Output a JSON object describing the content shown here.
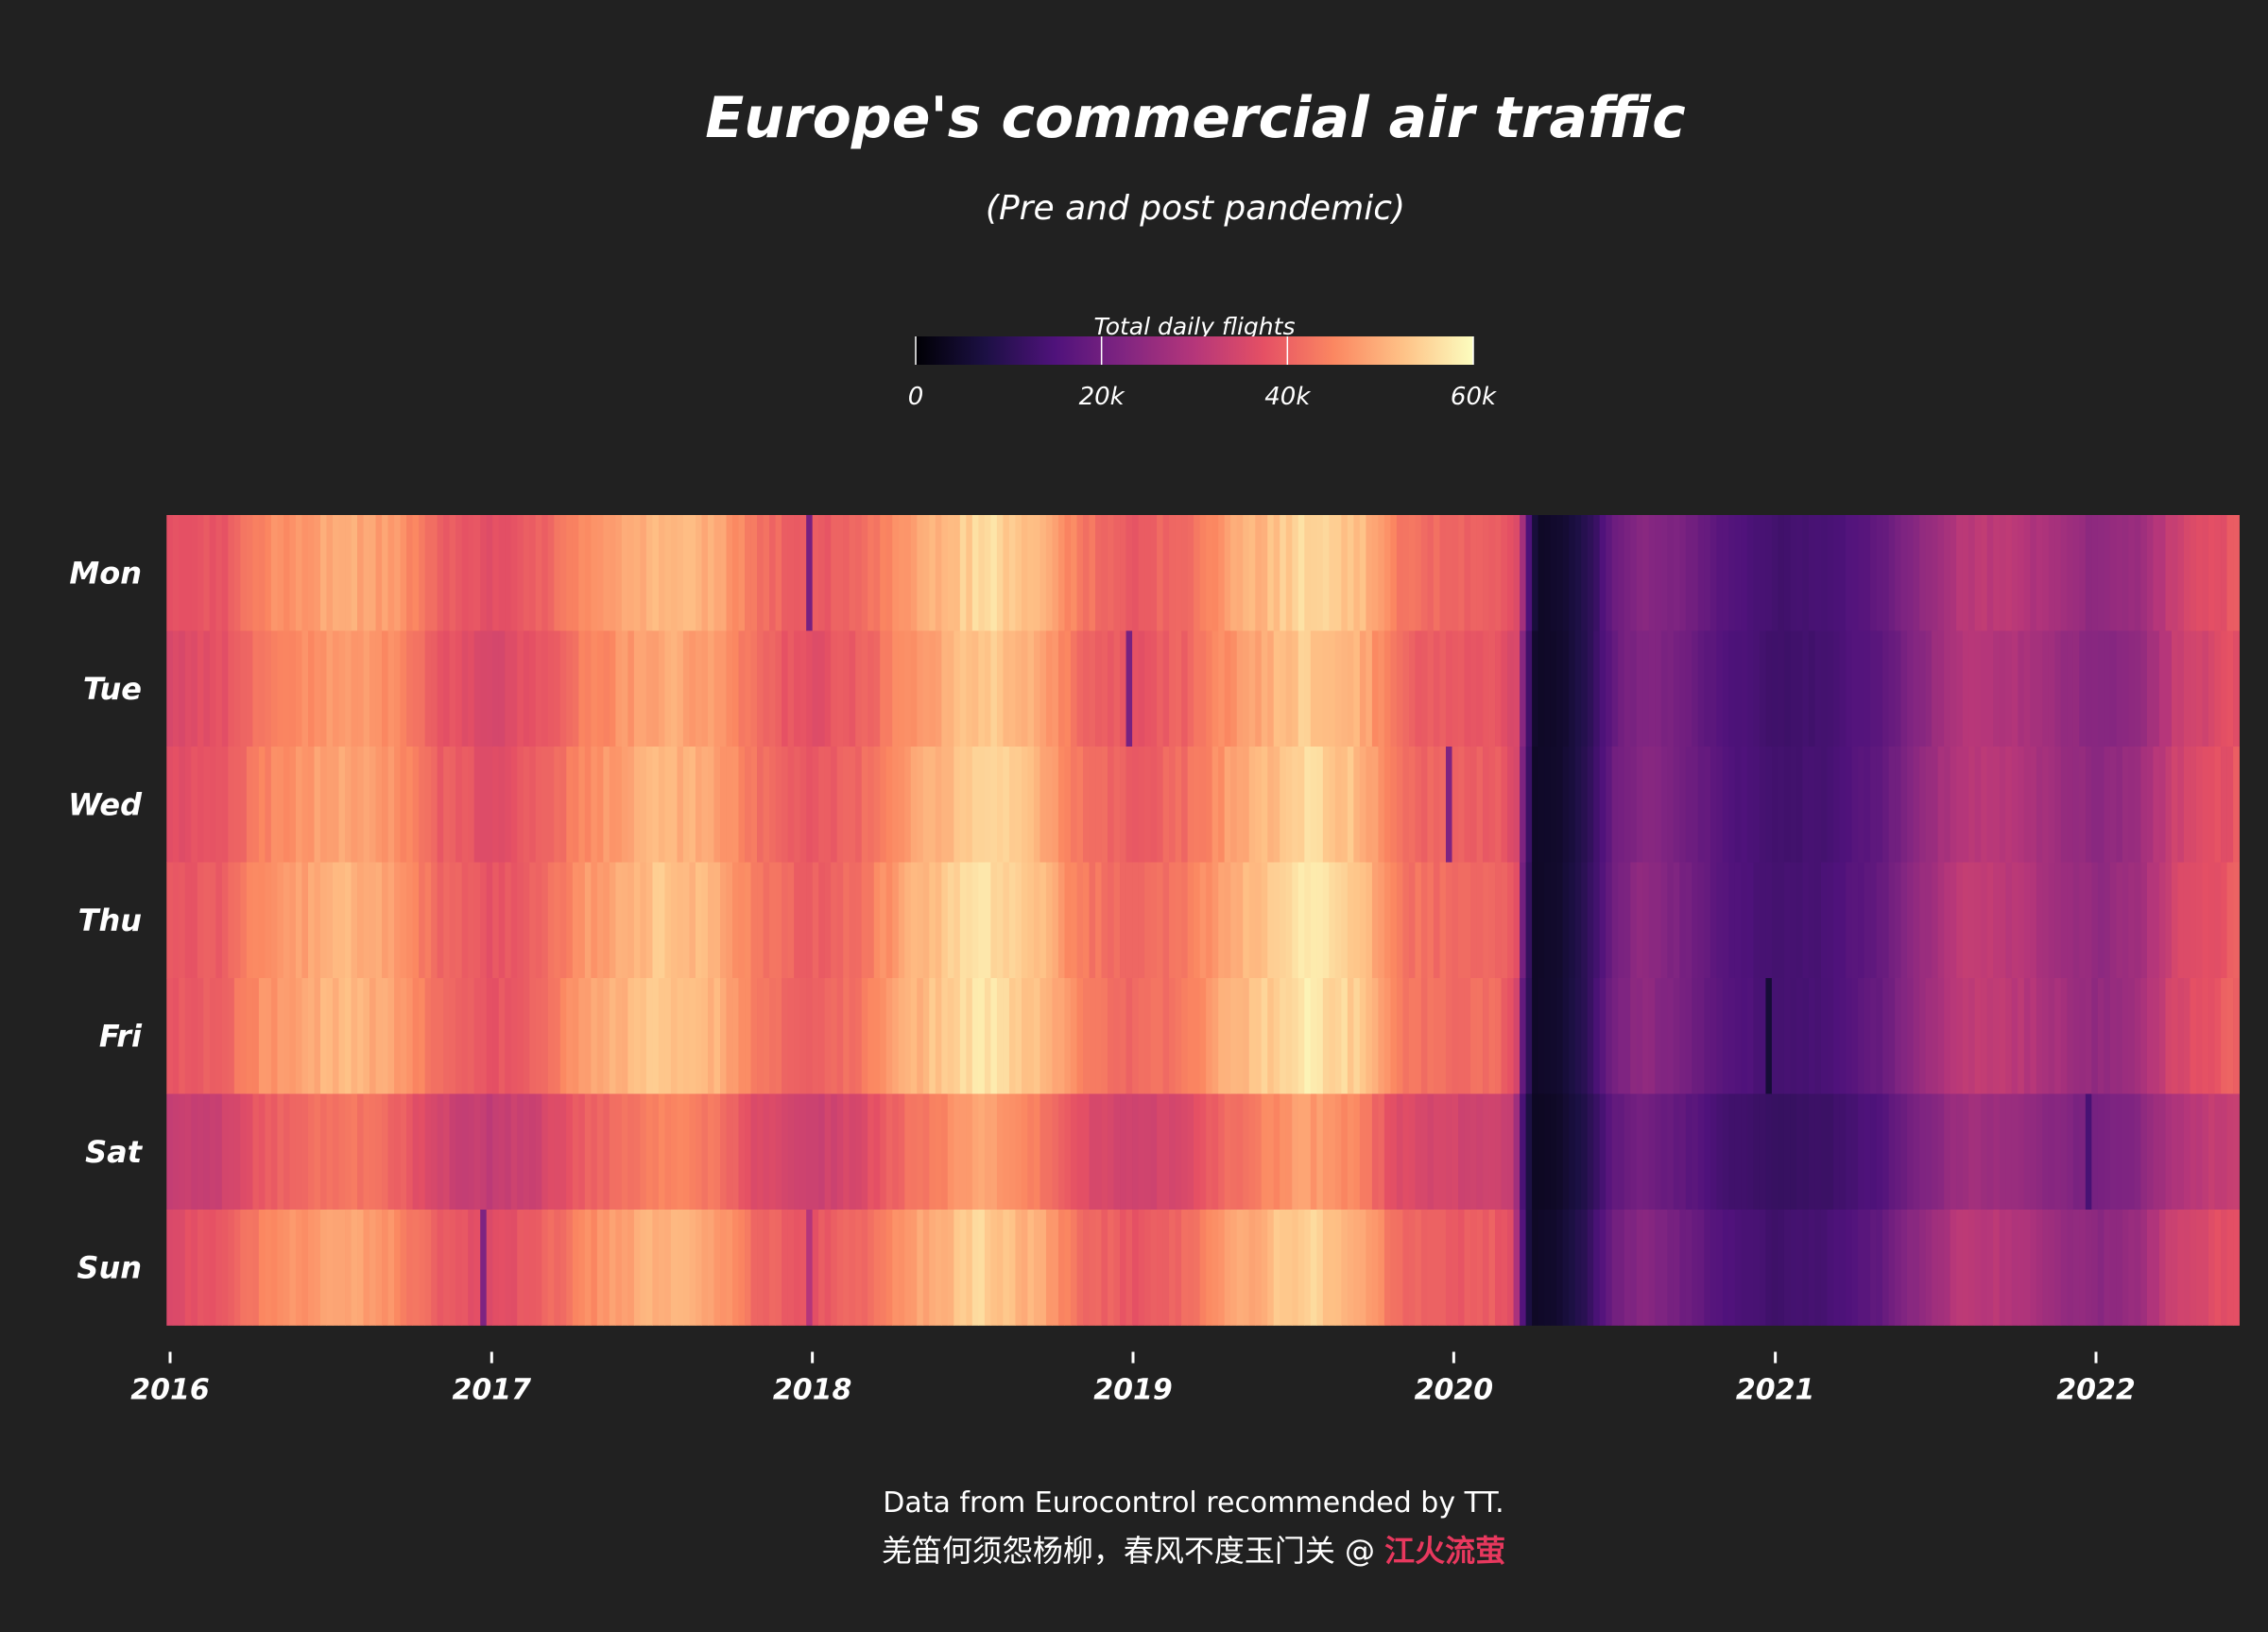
{
  "chart_data": {
    "type": "heatmap",
    "title": "Europe's commercial air traffic",
    "subtitle": "(Pre and post pandemic)",
    "legend": {
      "title": "Total daily flights",
      "range": [
        0,
        60000
      ],
      "ticks": [
        0,
        20000,
        40000,
        60000
      ],
      "tick_labels": [
        "0",
        "20k",
        "40k",
        "60k"
      ],
      "placement": "top-center",
      "colormap": "magma",
      "stops": [
        "#000004",
        "#1c1044",
        "#4f127b",
        "#812581",
        "#b5367a",
        "#e55064",
        "#fb8761",
        "#fec287",
        "#fcfdbf"
      ]
    },
    "x_axis": {
      "ticks": [
        "2016-01-01",
        "2017-01-01",
        "2018-01-01",
        "2019-01-01",
        "2020-01-01",
        "2021-01-01",
        "2022-01-01"
      ],
      "tick_labels": [
        "2016",
        "2017",
        "2018",
        "2019",
        "2020",
        "2021",
        "2022"
      ],
      "range": [
        "2015-12-28",
        "2022-06-12"
      ]
    },
    "y_axis": {
      "categories": [
        "Mon",
        "Tue",
        "Wed",
        "Thu",
        "Fri",
        "Sat",
        "Sun"
      ]
    },
    "grid": false,
    "weekday_factor": {
      "Mon": 1.0,
      "Tue": 0.96,
      "Wed": 0.99,
      "Thu": 1.02,
      "Fri": 1.03,
      "Sat": 0.86,
      "Sun": 0.98
    },
    "level_series": {
      "description": "Approximate average daily flights over time; each cell = level x weekday factor",
      "points": [
        [
          "2016-01-01",
          37000
        ],
        [
          "2016-03-01",
          39000
        ],
        [
          "2016-04-15",
          45000
        ],
        [
          "2016-07-15",
          50000
        ],
        [
          "2016-09-15",
          47000
        ],
        [
          "2016-11-01",
          40000
        ],
        [
          "2017-01-01",
          37000
        ],
        [
          "2017-03-01",
          40000
        ],
        [
          "2017-04-15",
          46000
        ],
        [
          "2017-07-15",
          52000
        ],
        [
          "2017-09-15",
          49000
        ],
        [
          "2017-11-01",
          42000
        ],
        [
          "2018-01-01",
          38500
        ],
        [
          "2018-03-01",
          42000
        ],
        [
          "2018-04-15",
          48000
        ],
        [
          "2018-07-15",
          56000
        ],
        [
          "2018-09-15",
          51000
        ],
        [
          "2018-11-01",
          43000
        ],
        [
          "2019-01-01",
          39000
        ],
        [
          "2019-03-01",
          42000
        ],
        [
          "2019-04-15",
          48000
        ],
        [
          "2019-07-15",
          56000
        ],
        [
          "2019-09-15",
          52000
        ],
        [
          "2019-11-01",
          42000
        ],
        [
          "2020-01-01",
          40000
        ],
        [
          "2020-02-20",
          40000
        ],
        [
          "2020-03-12",
          36000
        ],
        [
          "2020-03-20",
          18000
        ],
        [
          "2020-04-01",
          4000
        ],
        [
          "2020-05-01",
          5000
        ],
        [
          "2020-06-01",
          10000
        ],
        [
          "2020-07-01",
          20000
        ],
        [
          "2020-08-01",
          24000
        ],
        [
          "2020-09-15",
          21000
        ],
        [
          "2020-11-01",
          16000
        ],
        [
          "2021-01-01",
          13000
        ],
        [
          "2021-03-01",
          14000
        ],
        [
          "2021-05-01",
          18000
        ],
        [
          "2021-06-15",
          25000
        ],
        [
          "2021-08-01",
          31000
        ],
        [
          "2021-09-15",
          31000
        ],
        [
          "2021-11-01",
          28000
        ],
        [
          "2022-01-01",
          24000
        ],
        [
          "2022-02-15",
          26000
        ],
        [
          "2022-04-01",
          34000
        ],
        [
          "2022-06-12",
          39000
        ]
      ]
    },
    "notable_days": [
      {
        "date": "2016-12-25",
        "value": 22000
      },
      {
        "date": "2017-12-25",
        "value": 21000
      },
      {
        "date": "2018-12-25",
        "value": 21000
      },
      {
        "date": "2019-12-25",
        "value": 22000
      },
      {
        "date": "2017-12-31",
        "value": 30000
      },
      {
        "date": "2020-12-25",
        "value": 6000
      },
      {
        "date": "2021-12-25",
        "value": 14000
      }
    ]
  },
  "footer": {
    "line1": "Data from Eurocontrol recommended by TT.",
    "line2": "羌笛何须怨杨柳，春风不度玉门关 @ ",
    "line2_highlight": "江火流萤",
    "highlight_color": "#e8385e"
  },
  "colors": {
    "background": "#212121",
    "text": "#ffffff"
  }
}
